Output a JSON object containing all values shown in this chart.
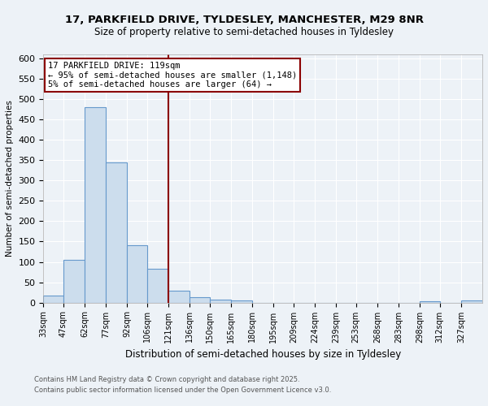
{
  "title1": "17, PARKFIELD DRIVE, TYLDESLEY, MANCHESTER, M29 8NR",
  "title2": "Size of property relative to semi-detached houses in Tyldesley",
  "xlabel": "Distribution of semi-detached houses by size in Tyldesley",
  "ylabel": "Number of semi-detached properties",
  "bins": [
    33,
    47,
    62,
    77,
    92,
    106,
    121,
    136,
    150,
    165,
    180,
    195,
    209,
    224,
    239,
    253,
    268,
    283,
    298,
    312,
    327
  ],
  "bin_labels": [
    "33sqm",
    "47sqm",
    "62sqm",
    "77sqm",
    "92sqm",
    "106sqm",
    "121sqm",
    "136sqm",
    "150sqm",
    "165sqm",
    "180sqm",
    "195sqm",
    "209sqm",
    "224sqm",
    "239sqm",
    "253sqm",
    "268sqm",
    "283sqm",
    "298sqm",
    "312sqm",
    "327sqm"
  ],
  "values": [
    17,
    105,
    480,
    345,
    140,
    83,
    30,
    13,
    7,
    5,
    0,
    0,
    0,
    0,
    0,
    0,
    0,
    0,
    4,
    0,
    5
  ],
  "bar_color": "#ccdded",
  "bar_edge_color": "#6699cc",
  "property_line_x": 121,
  "property_line_color": "#8b0000",
  "annotation_line1": "17 PARKFIELD DRIVE: 119sqm",
  "annotation_line2": "← 95% of semi-detached houses are smaller (1,148)",
  "annotation_line3": "5% of semi-detached houses are larger (64) →",
  "annotation_box_color": "#ffffff",
  "annotation_box_edge_color": "#8b0000",
  "ylim": [
    0,
    610
  ],
  "yticks": [
    0,
    50,
    100,
    150,
    200,
    250,
    300,
    350,
    400,
    450,
    500,
    550,
    600
  ],
  "footer1": "Contains HM Land Registry data © Crown copyright and database right 2025.",
  "footer2": "Contains public sector information licensed under the Open Government Licence v3.0.",
  "bg_color": "#edf2f7",
  "plot_bg_color": "#edf2f7",
  "grid_color": "#ffffff"
}
